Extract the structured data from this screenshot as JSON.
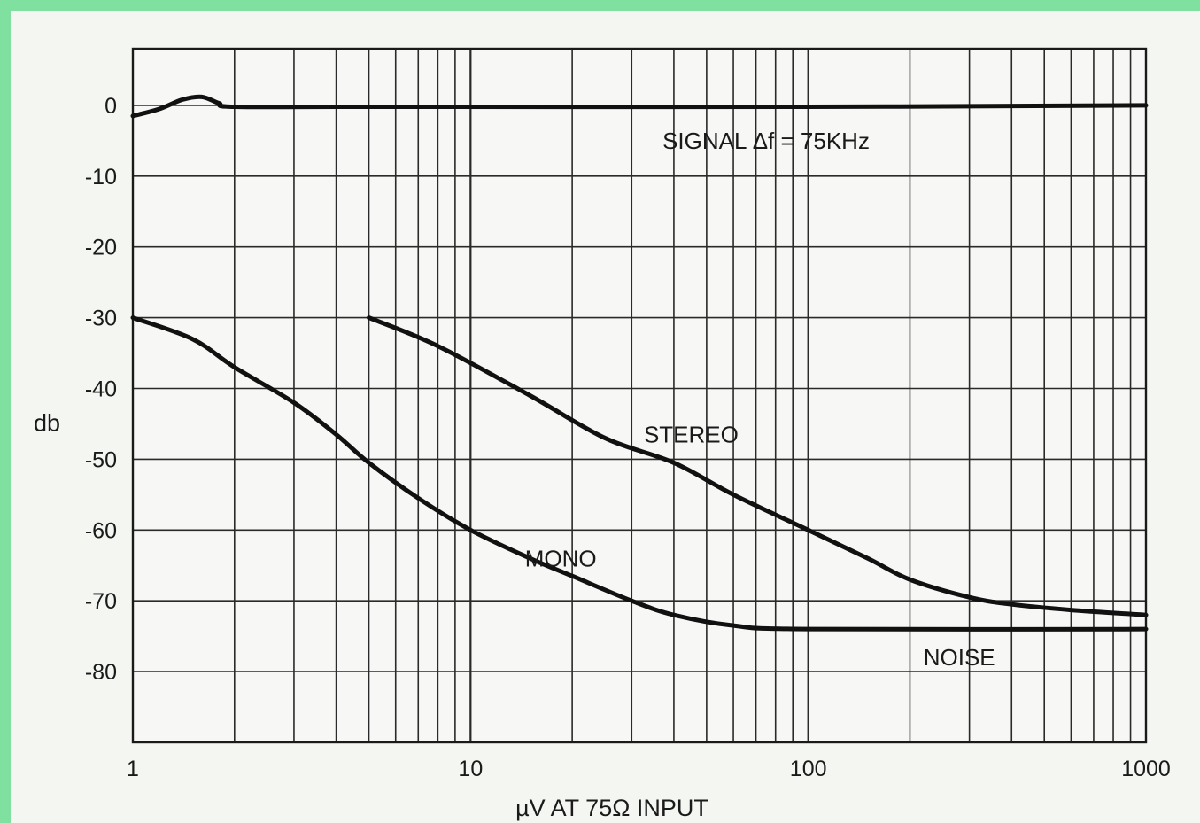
{
  "chart_data": {
    "type": "line",
    "xlabel": "µV  AT 75Ω INPUT",
    "ylabel": "db",
    "xscale": "log",
    "xlim": [
      1,
      1000
    ],
    "ylim": [
      -90,
      8
    ],
    "x_ticks": [
      {
        "value": 1,
        "label": "1"
      },
      {
        "value": 10,
        "label": "10"
      },
      {
        "value": 100,
        "label": "100"
      },
      {
        "value": 1000,
        "label": "1000"
      }
    ],
    "y_ticks": [
      {
        "value": 0,
        "label": "0"
      },
      {
        "value": -10,
        "label": "-10"
      },
      {
        "value": -20,
        "label": "-20"
      },
      {
        "value": -30,
        "label": "-30"
      },
      {
        "value": -40,
        "label": "-40"
      },
      {
        "value": -50,
        "label": "-50"
      },
      {
        "value": -60,
        "label": "-60"
      },
      {
        "value": -70,
        "label": "-70"
      },
      {
        "value": -80,
        "label": "-80"
      }
    ],
    "grid": true,
    "series": [
      {
        "name": "SIGNAL  Δf = 75KHz",
        "points": [
          [
            1,
            -1.5
          ],
          [
            1.2,
            -0.5
          ],
          [
            1.4,
            0.8
          ],
          [
            1.6,
            1.2
          ],
          [
            1.8,
            0.3
          ],
          [
            2,
            -0.2
          ],
          [
            5,
            -0.2
          ],
          [
            100,
            -0.2
          ],
          [
            1000,
            0
          ]
        ]
      },
      {
        "name": "STEREO",
        "points": [
          [
            5,
            -30
          ],
          [
            8,
            -34
          ],
          [
            15,
            -41
          ],
          [
            25,
            -47
          ],
          [
            40,
            -50.5
          ],
          [
            60,
            -55
          ],
          [
            100,
            -60
          ],
          [
            150,
            -64
          ],
          [
            200,
            -67
          ],
          [
            300,
            -69.5
          ],
          [
            400,
            -70.5
          ],
          [
            600,
            -71.3
          ],
          [
            1000,
            -72
          ]
        ]
      },
      {
        "name": "MONO",
        "points": [
          [
            1,
            -30
          ],
          [
            1.5,
            -33
          ],
          [
            2,
            -37
          ],
          [
            3,
            -42
          ],
          [
            4,
            -46.5
          ],
          [
            5,
            -50.5
          ],
          [
            7,
            -55.5
          ],
          [
            10,
            -60
          ],
          [
            15,
            -64
          ],
          [
            20,
            -66.5
          ],
          [
            30,
            -70
          ],
          [
            40,
            -72
          ],
          [
            60,
            -73.5
          ],
          [
            100,
            -74
          ],
          [
            1000,
            -74
          ]
        ]
      }
    ],
    "annotations": [
      {
        "text": "SIGNAL  Δf = 75KHz",
        "x": 75,
        "y": -5
      },
      {
        "text": "STEREO",
        "x": 45,
        "y": -46.5
      },
      {
        "text": "MONO",
        "x": 18.5,
        "y": -64
      },
      {
        "text": "NOISE",
        "x": 280,
        "y": -78
      }
    ]
  }
}
